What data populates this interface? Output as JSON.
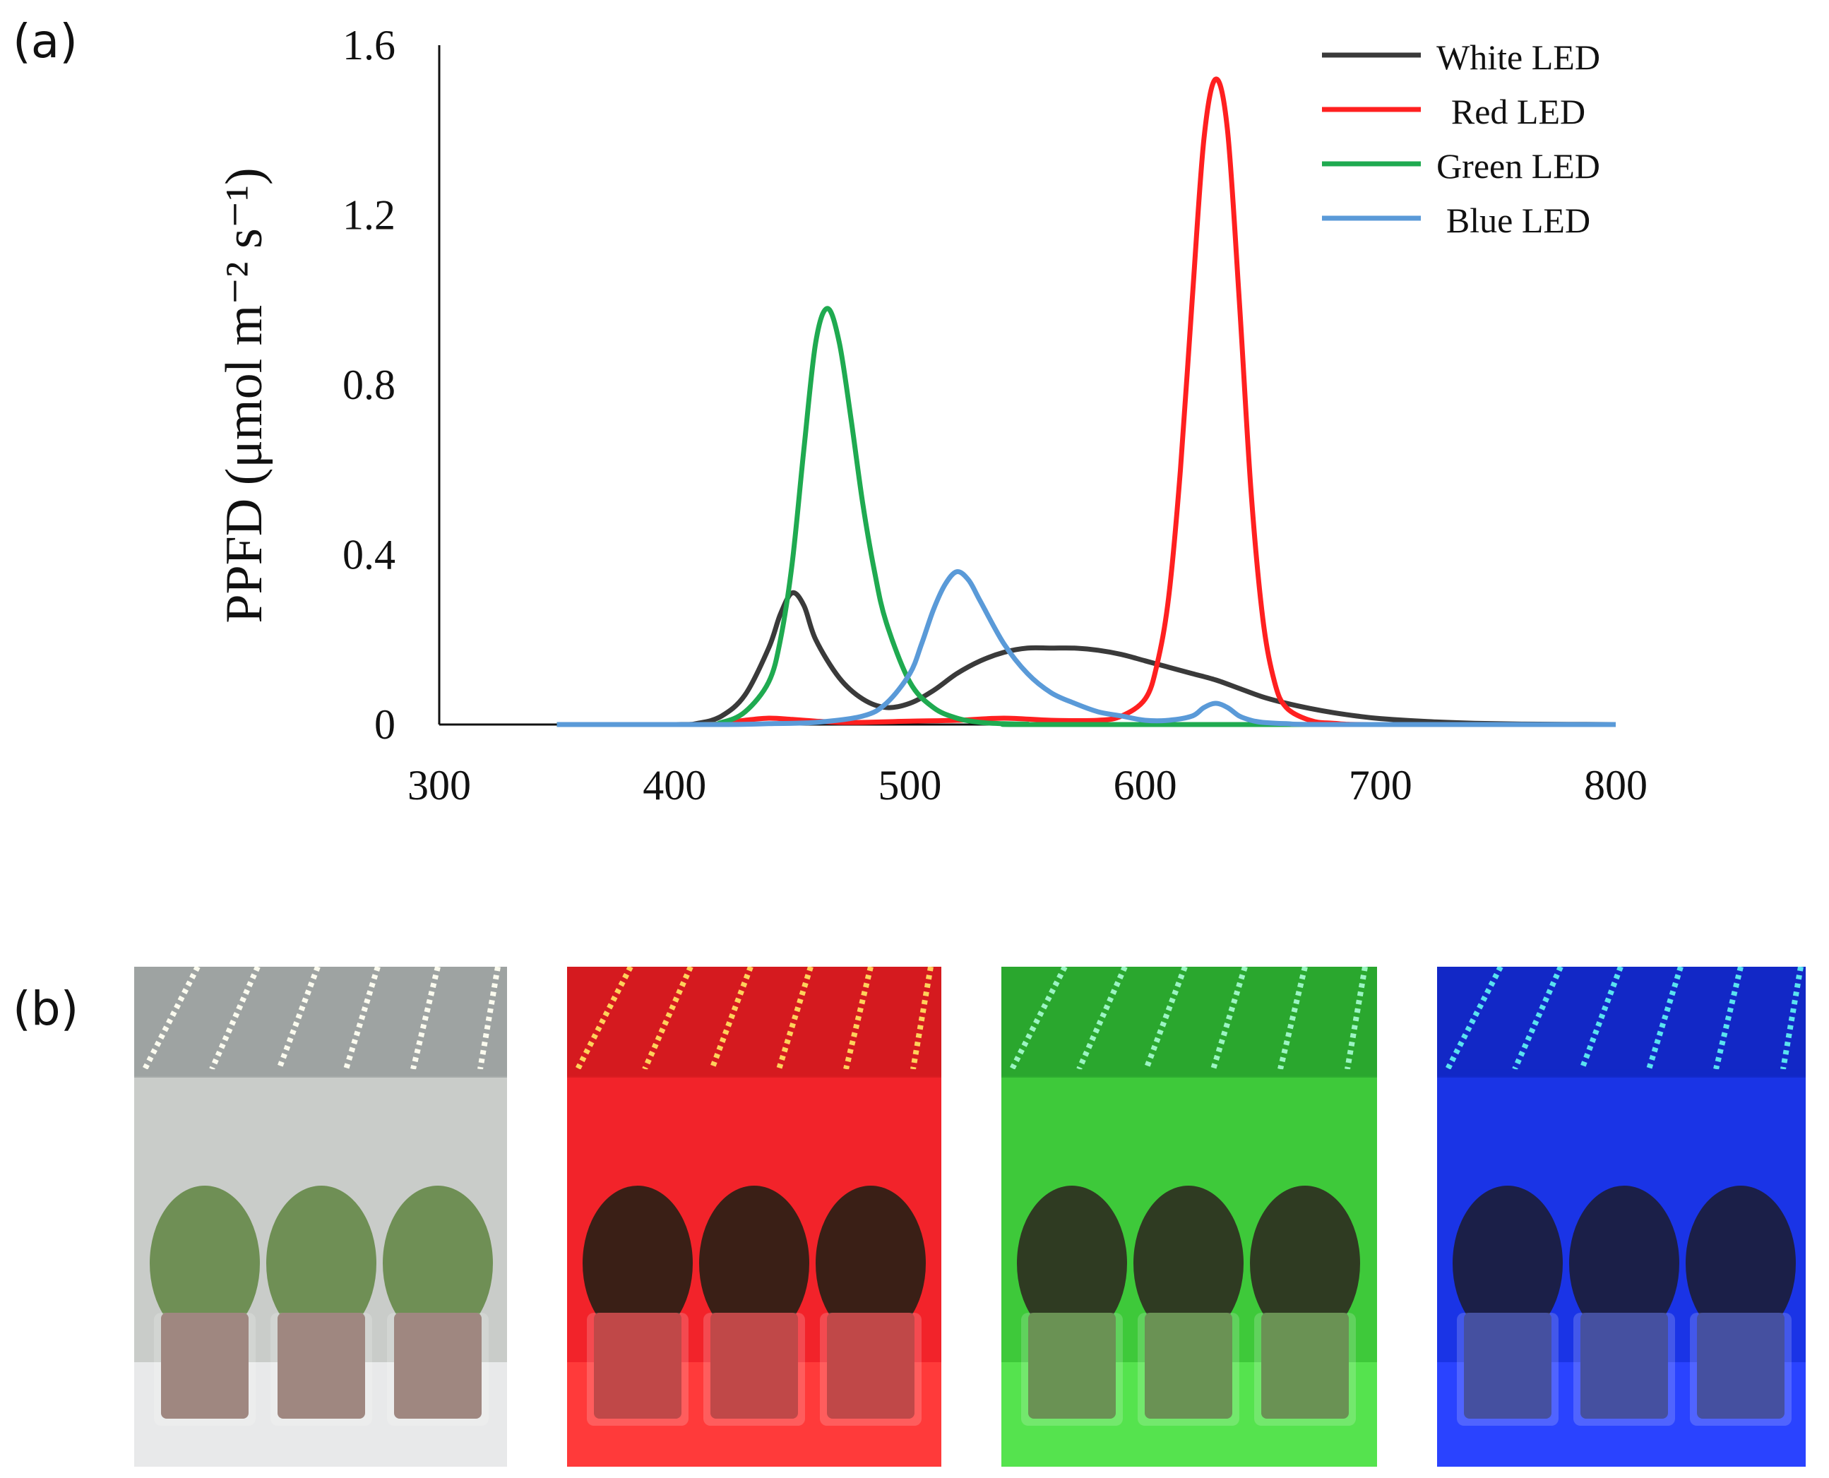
{
  "panel_labels": {
    "a": "(a)",
    "b": "(b)"
  },
  "chart_data": {
    "type": "line",
    "title": "",
    "xlabel": "",
    "ylabel": "PPFD (μmol m⁻² s⁻¹)",
    "xlim": [
      300,
      800
    ],
    "ylim": [
      0,
      1.6
    ],
    "x_ticks": [
      "300",
      "400",
      "500",
      "600",
      "700",
      "800"
    ],
    "y_ticks": [
      "0",
      "0.4",
      "0.8",
      "1.2",
      "1.6"
    ],
    "grid": false,
    "legend_position": "top-right",
    "series": [
      {
        "name": "White LED",
        "color": "#3a3a3a",
        "x": [
          350,
          400,
          410,
          420,
          430,
          440,
          445,
          450,
          455,
          460,
          470,
          480,
          490,
          500,
          510,
          520,
          530,
          540,
          550,
          560,
          570,
          580,
          590,
          600,
          610,
          620,
          630,
          640,
          650,
          660,
          670,
          680,
          690,
          700,
          720,
          740,
          760,
          780,
          800
        ],
        "values": [
          0,
          0,
          0.003,
          0.02,
          0.07,
          0.18,
          0.26,
          0.31,
          0.28,
          0.2,
          0.11,
          0.06,
          0.04,
          0.05,
          0.08,
          0.12,
          0.15,
          0.17,
          0.18,
          0.18,
          0.18,
          0.175,
          0.165,
          0.15,
          0.135,
          0.12,
          0.105,
          0.085,
          0.065,
          0.05,
          0.038,
          0.028,
          0.02,
          0.014,
          0.007,
          0.003,
          0.001,
          0.0005,
          0
        ]
      },
      {
        "name": "Red LED",
        "color": "#ff2020",
        "x": [
          350,
          410,
          420,
          430,
          440,
          450,
          460,
          470,
          480,
          500,
          520,
          540,
          560,
          580,
          590,
          600,
          605,
          610,
          615,
          620,
          625,
          630,
          635,
          640,
          645,
          650,
          655,
          660,
          670,
          680,
          700,
          800
        ],
        "values": [
          0,
          0,
          0.003,
          0.01,
          0.015,
          0.012,
          0.008,
          0.005,
          0.005,
          0.008,
          0.01,
          0.015,
          0.01,
          0.01,
          0.02,
          0.06,
          0.14,
          0.3,
          0.6,
          1.0,
          1.38,
          1.52,
          1.4,
          1.0,
          0.55,
          0.25,
          0.1,
          0.04,
          0.01,
          0.003,
          0,
          0
        ]
      },
      {
        "name": "Green LED",
        "color": "#1faa50",
        "x": [
          350,
          410,
          420,
          430,
          440,
          445,
          450,
          455,
          460,
          465,
          470,
          475,
          480,
          485,
          490,
          500,
          510,
          520,
          530,
          540,
          550,
          560,
          800
        ],
        "values": [
          0,
          0,
          0.005,
          0.03,
          0.1,
          0.2,
          0.38,
          0.65,
          0.9,
          0.98,
          0.9,
          0.72,
          0.52,
          0.36,
          0.24,
          0.1,
          0.04,
          0.015,
          0.005,
          0.002,
          0.001,
          0,
          0
        ]
      },
      {
        "name": "Blue LED",
        "color": "#5a9ad8",
        "x": [
          350,
          420,
          440,
          460,
          480,
          490,
          500,
          505,
          510,
          515,
          520,
          525,
          530,
          540,
          550,
          560,
          570,
          580,
          590,
          600,
          610,
          620,
          625,
          630,
          635,
          640,
          645,
          650,
          660,
          680,
          800
        ],
        "values": [
          0,
          0,
          0.002,
          0.005,
          0.02,
          0.05,
          0.12,
          0.19,
          0.27,
          0.33,
          0.36,
          0.34,
          0.29,
          0.19,
          0.12,
          0.075,
          0.05,
          0.03,
          0.02,
          0.01,
          0.01,
          0.02,
          0.04,
          0.05,
          0.04,
          0.02,
          0.01,
          0.005,
          0.002,
          0,
          0
        ]
      }
    ]
  },
  "photos": [
    {
      "name": "white-led-photo",
      "bg": "#c9ccc9",
      "top": "#9ea3a2",
      "strip": "#fbfbef",
      "plant": "#6f8f55",
      "pot": "#8a6d64",
      "floor": "#e8e9ea"
    },
    {
      "name": "red-led-photo",
      "bg": "#f2232a",
      "top": "#d51a1f",
      "strip": "#ffd25a",
      "plant": "#3a1f16",
      "pot": "#b32020",
      "floor": "#ff3a3a"
    },
    {
      "name": "green-led-photo",
      "bg": "#3ec93a",
      "top": "#2aa72e",
      "strip": "#9bf5c3",
      "plant": "#2f3b22",
      "pot": "#4a7a2f",
      "floor": "#55e34e"
    },
    {
      "name": "blue-led-photo",
      "bg": "#1a34e6",
      "top": "#1228c6",
      "strip": "#59e3f0",
      "plant": "#1b1f48",
      "pot": "#1d2a8c",
      "floor": "#2a43ff"
    }
  ]
}
